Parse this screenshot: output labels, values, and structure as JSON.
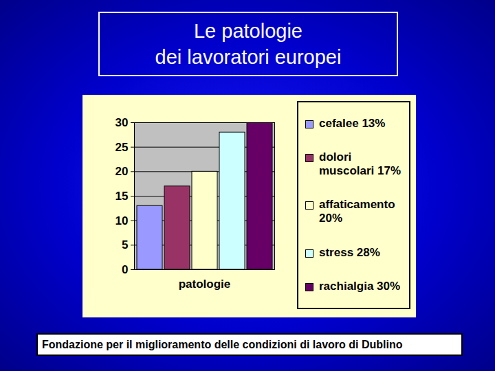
{
  "chart_data": {
    "type": "bar",
    "title": "Le patologie\ndei lavoratori europei",
    "caption": "Fondazione per il miglioramento delle condizioni di lavoro di Dublino",
    "categories": [
      "patologie"
    ],
    "series": [
      {
        "name": "cefalee 13%",
        "color": "#9999ff",
        "values": [
          13
        ]
      },
      {
        "name": "dolori muscolari 17%",
        "color": "#993366",
        "values": [
          17
        ]
      },
      {
        "name": "affaticamento 20%",
        "color": "#ffffcc",
        "values": [
          20
        ]
      },
      {
        "name": "stress 28%",
        "color": "#ccffff",
        "values": [
          28
        ]
      },
      {
        "name": "rachialgia 30%",
        "color": "#660066",
        "values": [
          30
        ]
      }
    ],
    "ylim": [
      0,
      30
    ],
    "yticks": [
      0,
      5,
      10,
      15,
      20,
      25,
      30
    ],
    "grid": true,
    "legend": "right"
  }
}
